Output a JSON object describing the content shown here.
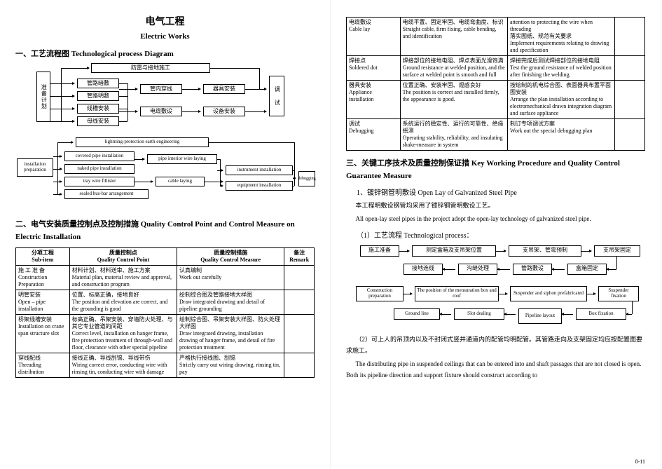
{
  "page1": {
    "title_cn": "电气工程",
    "title_en": "Electric Works",
    "sec1": "一、工艺流程图  Technological process Diagram",
    "cn_diagram": {
      "prep": "准备计划",
      "top": "防雷与接地施工",
      "a": "管路暗敷",
      "b": "管路明敷",
      "c": "线槽安装",
      "d": "母线安装",
      "mid1": "管内穿线",
      "mid2": "电缆敷设",
      "r1": "器具安装",
      "r2": "设备安装",
      "debug": "调 试"
    },
    "en_diagram": {
      "prep": "installation preparation",
      "top": "lightning-protection earth engineering",
      "a": "covered pipe installation",
      "b": "naked pipe installation",
      "c": "tray wire fillister",
      "d": "sealed bus-bar arrangement",
      "mid1": "pipe interior wire laying",
      "mid2": "cable laying",
      "r1": "instrument installation",
      "r2": "equipment installation",
      "debug": "debugging"
    },
    "sec2": "二、电气安装质量控制点及控制措施  Quality Control Point and Control Measure on Electric Installation",
    "th": {
      "c1a": "分项工程",
      "c1b": "Sub-item",
      "c2a": "质量控制点",
      "c2b": "Quality Control Point",
      "c3a": "质量控制措施",
      "c3b": "Quality Control Measure",
      "c4a": "备注",
      "c4b": "Remark"
    },
    "rows": [
      {
        "c1": "施 工 准 备\nConstruction Preparation",
        "c2": "材料计划、材料送审、施工方案\nMaterial plan, material review and approval, and construction program",
        "c3": "认真编制\nWork out carefully",
        "c4": ""
      },
      {
        "c1": "明管安装\nOpen – pipe installation",
        "c2": "位置、标高正确，接地良好\nThe position and elevation are correct, and the grounding is good",
        "c3": "绘制综合图及管路接地大样图\nDraw integrated drawing and detail of pipeline grounding",
        "c4": ""
      },
      {
        "c1": "桥架线槽安装\nInstallation on crane span structure slot",
        "c2": "标高正确、吊架安装、穿墙防火处理、与其它专业管道的间距\nCorrect level, installation on hanger frame, fire protection treatment of through-wall and floor, clearance with other special pipeline",
        "c3": "绘制综合图、吊架安装大样图、防火处理大样图\nDraw integrated drawing, installation drawing of hanger frame, and detail of fire protection treatment",
        "c4": ""
      },
      {
        "c1": "穿线配线\nThreading distribution",
        "c2": "接线正确、导线刮锡、导线带伤\nWiring correct error, conducting wire with rinsing tin, conducting wire with damage",
        "c3": "严格执行接线图、刮锡\nStrictly carry out wiring drawing, rinsing tin, pay",
        "c4": ""
      }
    ]
  },
  "page2": {
    "rows": [
      {
        "c1": "电缆敷设\nCable lay",
        "c2": "电缆平置、固定牢固、电缆弯曲度、标识\nStraight cable, firm fixing, cable bending, and identification",
        "c3": "attention to protecting the wire when threading\n落实图纸、规范有关要求\nImplement requirements relating to drawing and specification",
        "c4": ""
      },
      {
        "c1": "焊接点\nSoldered dot",
        "c2": "焊接部位的接地电阻、焊点表面光滑饱满\nGround resistance at welded position, and the surface at welded point is smooth and full",
        "c3": "焊接完成后测试焊接部位的接地电阻\nTest the ground resistance of welded position after finishing the welding.",
        "c4": ""
      },
      {
        "c1": "器具安装\nAppliance installation",
        "c2": "位置正确、安装牢固、观感良好\nThe position is correct and installed firmly, the appearance is good.",
        "c3": "按绘制的机电综合图、表面器具布置平面图安装\nArrange the plan installation according to electromechanical drawn integration diagram and surface appliance",
        "c4": ""
      },
      {
        "c1": "调试\nDebugging",
        "c2": "系统运行的稳定性、运行的可靠性、绝缘摇测\nOperating stability, reliability, and insulating shake-measure in system",
        "c3": "制订专项调试方案\nWork out the special debugging plan",
        "c4": ""
      }
    ],
    "sec3": "三、关键工序技术及质量控制保证措  Key Working Procedure and Quality Control Guarantee Measure",
    "sub1_cn": "1、镀锌钢管明敷设  Open Lay of Galvanized Steel Pipe",
    "p1_cn": "本工程明敷设钢管均采用了镀锌钢管明敷设工艺。",
    "p1_en": "All open-lay steel pipes in the project adopt the open-lay technology of galvanized steel pipe.",
    "sub2": "（1）工艺流程    Technological process：",
    "d_cn": {
      "a": "施工准备",
      "b": "测定盒箱及支吊架位置",
      "c": "支吊架、管弯预制",
      "d": "支吊架固定",
      "e": "接地连线",
      "f": "沟缝处理",
      "g": "管路敷设",
      "h": "盒箱固定"
    },
    "d_en": {
      "a": "Construction preparation",
      "b": "The position of the mensuration box and roof",
      "c": "Suspender and siphon prefabricated",
      "d": "Suspender fixation",
      "e": "Ground line",
      "f": "Slot dealing",
      "g": "Pipeline layout",
      "h": "Box fixation"
    },
    "p2_cn": "（2）可上人的吊顶内以及不封闭式竖井通道内的配管均明配管。其管路走向及支架固定均应按配置图要求施工。",
    "p2_en": "The distributing pipe in suspended ceilings that can be entered into and shaft passages that are not closed is open. Both its pipeline direction and support fixture should construct according to",
    "footer": "8-11"
  },
  "colors": {
    "text": "#000000",
    "bg": "#ffffff",
    "border": "#000000"
  }
}
